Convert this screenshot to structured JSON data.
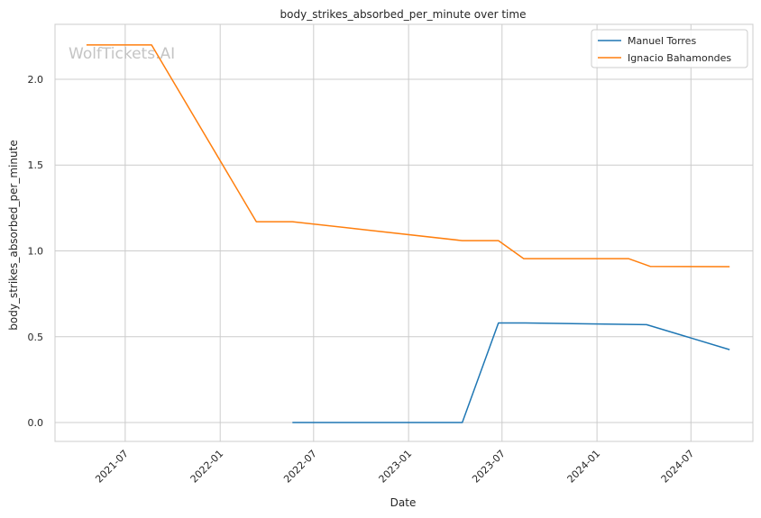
{
  "chart_data": {
    "type": "line",
    "title": "body_strikes_absorbed_per_minute over time",
    "xlabel": "Date",
    "ylabel": "body_strikes_absorbed_per_minute",
    "watermark": "WolfTickets.AI",
    "x_ticks": [
      "2021-07",
      "2022-01",
      "2022-07",
      "2023-01",
      "2023-07",
      "2024-01",
      "2024-07"
    ],
    "y_ticks": [
      "0.0",
      "0.5",
      "1.0",
      "1.5",
      "2.0"
    ],
    "xlim": [
      "2021-02-15",
      "2024-10-29"
    ],
    "ylim": [
      -0.11,
      2.32
    ],
    "grid": true,
    "legend_position": "top-right",
    "series": [
      {
        "name": "Manuel Torres",
        "color": "#1f77b4",
        "points": [
          {
            "x": "2022-05-21",
            "y": 0.0
          },
          {
            "x": "2023-04-15",
            "y": 0.0
          },
          {
            "x": "2023-06-24",
            "y": 0.58
          },
          {
            "x": "2023-08-15",
            "y": 0.58
          },
          {
            "x": "2024-04-06",
            "y": 0.57
          },
          {
            "x": "2024-09-14",
            "y": 0.425
          }
        ]
      },
      {
        "name": "Ignacio Bahamondes",
        "color": "#ff7f0e",
        "points": [
          {
            "x": "2021-04-17",
            "y": 2.2
          },
          {
            "x": "2021-08-21",
            "y": 2.2
          },
          {
            "x": "2022-03-12",
            "y": 1.17
          },
          {
            "x": "2022-05-21",
            "y": 1.17
          },
          {
            "x": "2023-04-15",
            "y": 1.06
          },
          {
            "x": "2023-06-24",
            "y": 1.06
          },
          {
            "x": "2023-08-12",
            "y": 0.955
          },
          {
            "x": "2024-03-02",
            "y": 0.955
          },
          {
            "x": "2024-04-13",
            "y": 0.91
          },
          {
            "x": "2024-09-14",
            "y": 0.908
          }
        ]
      }
    ]
  }
}
